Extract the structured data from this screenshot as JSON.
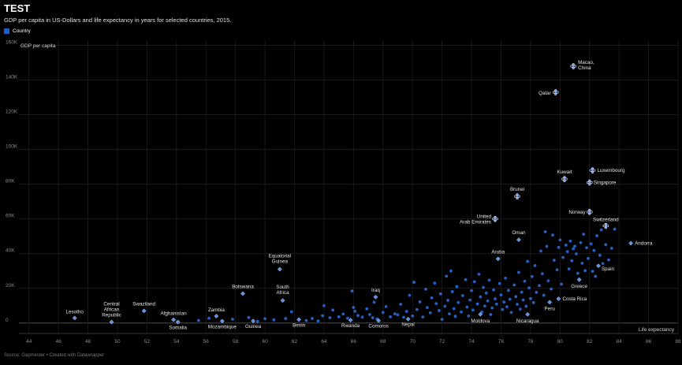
{
  "title": "TEST",
  "subtitle": "GDP per capita in US-Dollars and life expectancy in years for selected countries, 2015.",
  "legend": {
    "label": "Country",
    "color": "#1e5fd0"
  },
  "source": "Source: Gapminder • Created with Datawrapper",
  "chart_data": {
    "type": "scatter",
    "title": "TEST",
    "xlabel": "Life expectancy",
    "ylabel": "GDP per capita",
    "xlim": [
      43,
      88
    ],
    "ylim": [
      -6000,
      163000
    ],
    "x_ticks": [
      44,
      46,
      48,
      50,
      52,
      54,
      56,
      58,
      60,
      62,
      64,
      66,
      68,
      70,
      72,
      74,
      76,
      78,
      80,
      82,
      84,
      86,
      88
    ],
    "y_ticks": [
      0,
      20000,
      40000,
      60000,
      80000,
      100000,
      120000,
      140000,
      160000
    ],
    "y_tick_labels": [
      "0",
      "20K",
      "40K",
      "60K",
      "80K",
      "100K",
      "120K",
      "140K",
      "160K"
    ],
    "grid": true,
    "point_color": "#2a6ad8",
    "labeled_points": [
      {
        "label": "Macao, China",
        "x": 80.9,
        "y": 148000
      },
      {
        "label": "Qatar",
        "x": 79.7,
        "y": 133000
      },
      {
        "label": "Luxembourg",
        "x": 82.2,
        "y": 88000
      },
      {
        "label": "Kuwait",
        "x": 80.3,
        "y": 83000
      },
      {
        "label": "Singapore",
        "x": 82.0,
        "y": 81000
      },
      {
        "label": "Brunei",
        "x": 77.1,
        "y": 73000
      },
      {
        "label": "Norway",
        "x": 82.0,
        "y": 64000
      },
      {
        "label": "United Arab Emirates",
        "x": 75.6,
        "y": 60000
      },
      {
        "label": "Switzerland",
        "x": 83.1,
        "y": 56000
      },
      {
        "label": "Oman",
        "x": 77.2,
        "y": 48000
      },
      {
        "label": "Andorra",
        "x": 84.8,
        "y": 46000
      },
      {
        "label": "Aruba",
        "x": 75.8,
        "y": 37000
      },
      {
        "label": "Spain",
        "x": 82.6,
        "y": 33000
      },
      {
        "label": "Equatorial Guinea",
        "x": 61.0,
        "y": 31000
      },
      {
        "label": "Greece",
        "x": 81.3,
        "y": 25000
      },
      {
        "label": "Botswana",
        "x": 58.5,
        "y": 17000
      },
      {
        "label": "Iraq",
        "x": 67.5,
        "y": 15000
      },
      {
        "label": "Costa Rica",
        "x": 79.9,
        "y": 14000
      },
      {
        "label": "South Africa",
        "x": 61.2,
        "y": 13000
      },
      {
        "label": "Peru",
        "x": 79.3,
        "y": 12000
      },
      {
        "label": "Swaziland",
        "x": 51.8,
        "y": 7000
      },
      {
        "label": "Moldova",
        "x": 74.6,
        "y": 5000
      },
      {
        "label": "Nicaragua",
        "x": 77.8,
        "y": 5000
      },
      {
        "label": "Zambia",
        "x": 56.7,
        "y": 4000
      },
      {
        "label": "Lesotho",
        "x": 47.1,
        "y": 2900
      },
      {
        "label": "Afghanistan",
        "x": 53.8,
        "y": 1900
      },
      {
        "label": "Mozambique",
        "x": 57.1,
        "y": 1100
      },
      {
        "label": "Guinea",
        "x": 59.2,
        "y": 1200
      },
      {
        "label": "Benin",
        "x": 62.3,
        "y": 2000
      },
      {
        "label": "Rwanda",
        "x": 65.8,
        "y": 1700
      },
      {
        "label": "Comoros",
        "x": 67.7,
        "y": 1400
      },
      {
        "label": "Nepal",
        "x": 69.7,
        "y": 2300
      },
      {
        "label": "Central African Republic",
        "x": 49.6,
        "y": 600
      },
      {
        "label": "Somalia",
        "x": 54.1,
        "y": 600
      }
    ],
    "points": [
      [
        55.5,
        1500
      ],
      [
        56.2,
        2800
      ],
      [
        57.8,
        2200
      ],
      [
        58.9,
        3200
      ],
      [
        59.5,
        1000
      ],
      [
        60.0,
        2500
      ],
      [
        60.6,
        1800
      ],
      [
        61.4,
        2600
      ],
      [
        61.8,
        6500
      ],
      [
        62.8,
        1500
      ],
      [
        63.2,
        2600
      ],
      [
        63.6,
        1200
      ],
      [
        63.9,
        4200
      ],
      [
        64.0,
        10000
      ],
      [
        64.4,
        3100
      ],
      [
        64.6,
        7500
      ],
      [
        65.0,
        3600
      ],
      [
        65.3,
        5200
      ],
      [
        65.6,
        2800
      ],
      [
        65.9,
        18500
      ],
      [
        66.0,
        9000
      ],
      [
        66.1,
        6800
      ],
      [
        66.3,
        4300
      ],
      [
        66.6,
        3400
      ],
      [
        66.9,
        8200
      ],
      [
        67.1,
        4900
      ],
      [
        67.3,
        3100
      ],
      [
        67.4,
        12000
      ],
      [
        67.6,
        2400
      ],
      [
        68.0,
        6100
      ],
      [
        68.2,
        9500
      ],
      [
        68.5,
        3600
      ],
      [
        68.8,
        5300
      ],
      [
        69.0,
        4800
      ],
      [
        69.2,
        10800
      ],
      [
        69.4,
        3300
      ],
      [
        69.6,
        6700
      ],
      [
        69.8,
        16000
      ],
      [
        70.0,
        4100
      ],
      [
        70.1,
        23500
      ],
      [
        70.3,
        7800
      ],
      [
        70.5,
        12200
      ],
      [
        70.7,
        3500
      ],
      [
        70.9,
        19500
      ],
      [
        71.0,
        8900
      ],
      [
        71.2,
        5900
      ],
      [
        71.3,
        14500
      ],
      [
        71.5,
        23000
      ],
      [
        71.6,
        11200
      ],
      [
        71.8,
        7200
      ],
      [
        71.9,
        16800
      ],
      [
        72.0,
        2100
      ],
      [
        72.2,
        9700
      ],
      [
        72.3,
        27000
      ],
      [
        72.4,
        13100
      ],
      [
        72.5,
        5300
      ],
      [
        72.6,
        30000
      ],
      [
        72.7,
        18100
      ],
      [
        72.8,
        8300
      ],
      [
        72.9,
        3900
      ],
      [
        73.0,
        21000
      ],
      [
        73.1,
        11900
      ],
      [
        73.3,
        6400
      ],
      [
        73.4,
        15800
      ],
      [
        73.6,
        25000
      ],
      [
        73.7,
        9200
      ],
      [
        73.8,
        4100
      ],
      [
        73.9,
        13300
      ],
      [
        74.0,
        18700
      ],
      [
        74.1,
        7500
      ],
      [
        74.2,
        23800
      ],
      [
        74.4,
        11000
      ],
      [
        74.5,
        28200
      ],
      [
        74.6,
        15100
      ],
      [
        74.7,
        6300
      ],
      [
        74.8,
        20500
      ],
      [
        74.9,
        9800
      ],
      [
        75.0,
        17300
      ],
      [
        75.1,
        12800
      ],
      [
        75.2,
        24700
      ],
      [
        75.3,
        4900
      ],
      [
        75.4,
        8700
      ],
      [
        75.5,
        19100
      ],
      [
        75.6,
        14000
      ],
      [
        75.7,
        10900
      ],
      [
        75.9,
        22800
      ],
      [
        76.0,
        16200
      ],
      [
        76.1,
        7800
      ],
      [
        76.2,
        12100
      ],
      [
        76.3,
        25900
      ],
      [
        76.4,
        9400
      ],
      [
        76.5,
        18800
      ],
      [
        76.6,
        13700
      ],
      [
        76.7,
        6100
      ],
      [
        76.9,
        22000
      ],
      [
        77.0,
        15200
      ],
      [
        77.1,
        10800
      ],
      [
        77.2,
        29200
      ],
      [
        77.3,
        8000
      ],
      [
        77.4,
        17800
      ],
      [
        77.5,
        13300
      ],
      [
        77.6,
        24100
      ],
      [
        77.7,
        9700
      ],
      [
        77.8,
        35500
      ],
      [
        77.9,
        20300
      ],
      [
        78.0,
        14100
      ],
      [
        78.1,
        26800
      ],
      [
        78.2,
        11800
      ],
      [
        78.3,
        33100
      ],
      [
        78.4,
        17700
      ],
      [
        78.6,
        21600
      ],
      [
        78.7,
        41500
      ],
      [
        78.8,
        28400
      ],
      [
        78.9,
        16000
      ],
      [
        79.0,
        52600
      ],
      [
        79.1,
        44200
      ],
      [
        79.2,
        24300
      ],
      [
        79.4,
        19600
      ],
      [
        79.5,
        50700
      ],
      [
        79.6,
        36200
      ],
      [
        79.8,
        30700
      ],
      [
        79.9,
        43600
      ],
      [
        80.0,
        47900
      ],
      [
        80.1,
        22400
      ],
      [
        80.2,
        37800
      ],
      [
        80.4,
        44900
      ],
      [
        80.5,
        41200
      ],
      [
        80.6,
        31200
      ],
      [
        80.7,
        47200
      ],
      [
        80.8,
        35900
      ],
      [
        80.9,
        42800
      ],
      [
        81.0,
        44300
      ],
      [
        81.1,
        39900
      ],
      [
        81.2,
        28700
      ],
      [
        81.4,
        46300
      ],
      [
        81.5,
        34500
      ],
      [
        81.6,
        51200
      ],
      [
        81.7,
        30200
      ],
      [
        81.8,
        43400
      ],
      [
        81.9,
        37200
      ],
      [
        82.1,
        45600
      ],
      [
        82.2,
        29800
      ],
      [
        82.3,
        41800
      ],
      [
        82.4,
        26900
      ],
      [
        82.5,
        50300
      ],
      [
        82.7,
        39100
      ],
      [
        82.8,
        53700
      ],
      [
        82.9,
        34300
      ],
      [
        83.1,
        45200
      ],
      [
        83.3,
        36400
      ],
      [
        83.5,
        43100
      ],
      [
        83.7,
        54100
      ]
    ]
  }
}
